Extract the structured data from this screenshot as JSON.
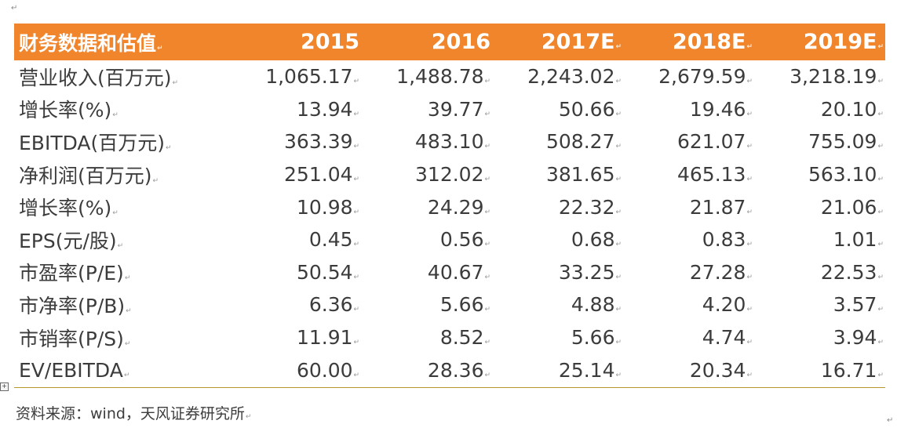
{
  "table": {
    "header": [
      "财务数据和估值",
      "2015",
      "2016",
      "2017E",
      "2018E",
      "2019E"
    ],
    "rows": [
      {
        "label": "营业收入(百万元)",
        "values": [
          "1,065.17",
          "1,488.78",
          "2,243.02",
          "2,679.59",
          "3,218.19"
        ]
      },
      {
        "label": "增长率(%)",
        "values": [
          "13.94",
          "39.77",
          "50.66",
          "19.46",
          "20.10"
        ]
      },
      {
        "label": "EBITDA(百万元)",
        "values": [
          "363.39",
          "483.10",
          "508.27",
          "621.07",
          "755.09"
        ]
      },
      {
        "label": "净利润(百万元)",
        "values": [
          "251.04",
          "312.02",
          "381.65",
          "465.13",
          "563.10"
        ]
      },
      {
        "label": "增长率(%)",
        "values": [
          "10.98",
          "24.29",
          "22.32",
          "21.87",
          "21.06"
        ]
      },
      {
        "label": "EPS(元/股)",
        "values": [
          "0.45",
          "0.56",
          "0.68",
          "0.83",
          "1.01"
        ]
      },
      {
        "label": "市盈率(P/E)",
        "values": [
          "50.54",
          "40.67",
          "33.25",
          "27.28",
          "22.53"
        ]
      },
      {
        "label": "市净率(P/B)",
        "values": [
          "6.36",
          "5.66",
          "4.88",
          "4.20",
          "3.57"
        ]
      },
      {
        "label": "市销率(P/S)",
        "values": [
          "11.91",
          "8.52",
          "5.66",
          "4.74",
          "3.94"
        ]
      },
      {
        "label": "EV/EBITDA",
        "values": [
          "60.00",
          "28.36",
          "25.14",
          "20.34",
          "16.71"
        ]
      }
    ]
  },
  "source": "资料来源：wind，天风证券研究所",
  "colors": {
    "header_bg": "#f0852c",
    "header_text": "#ffffff",
    "body_text": "#3c3c3c",
    "rule": "#b8962e"
  }
}
